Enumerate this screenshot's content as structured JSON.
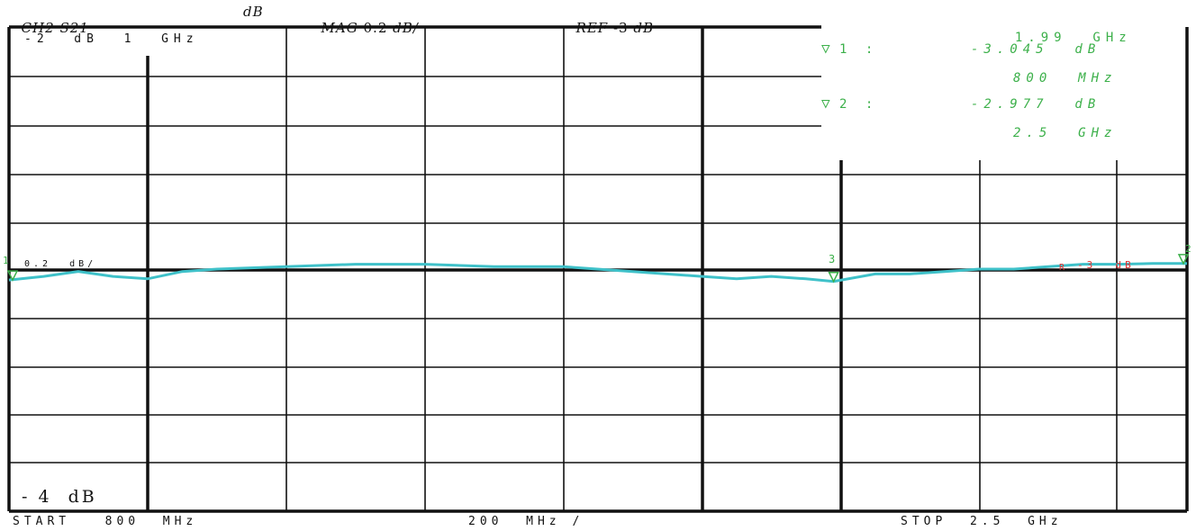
{
  "header": {
    "channel": "CH2",
    "parameter": "S21",
    "unit": "dB",
    "format": "MAG",
    "scale": "0.2",
    "scale_unit": "dB/",
    "ref_label": "REF",
    "ref_value": "-3",
    "ref_unit": "dB"
  },
  "markers": {
    "m3_freq": "1.99  GHz",
    "m1_label": "1 :",
    "m1_value": "-3.045  dB",
    "m1_freq": "800  MHz",
    "m2_label": "2 :",
    "m2_value": "-2.977  dB",
    "m2_freq": "2.5  GHz",
    "colors": {
      "trace": "#3fc1c9",
      "marker": "#3cb04a",
      "ref": "#e03030"
    }
  },
  "screen": {
    "top_left_text": "-2  dB  1  GHz",
    "scale_overlay": "0.2  dB/",
    "bottom_left_text": "- 4  dB",
    "ref_overlay": "-3  dB",
    "ref_marker_symbol": "R",
    "marker1_tag": "1",
    "marker2_tag": "2",
    "marker3_tag": "3"
  },
  "footer": {
    "start": "START   800  MHz",
    "span": "200  MHz /",
    "stop": "STOP  2.5  GHz"
  },
  "chart_data": {
    "type": "line",
    "title": "",
    "xlabel": "",
    "ylabel": "",
    "x_unit": "GHz",
    "y_unit": "dB",
    "xlim": [
      0.8,
      2.5
    ],
    "ylim": [
      -4,
      -2
    ],
    "reference_level": -3,
    "grid": true,
    "series": [
      {
        "x": [
          0.8,
          0.85,
          0.9,
          0.95,
          1.0,
          1.05,
          1.1,
          1.2,
          1.3,
          1.4,
          1.5,
          1.6,
          1.7,
          1.8,
          1.85,
          1.9,
          1.95,
          1.99,
          2.05,
          2.1,
          2.15,
          2.2,
          2.25,
          2.3,
          2.35,
          2.4,
          2.45,
          2.5
        ],
        "y": [
          -3.045,
          -3.03,
          -3.01,
          -3.03,
          -3.04,
          -3.01,
          -3.0,
          -2.99,
          -2.98,
          -2.98,
          -2.99,
          -2.99,
          -3.01,
          -3.03,
          -3.04,
          -3.03,
          -3.04,
          -3.051,
          -3.02,
          -3.02,
          -3.01,
          -3.0,
          -3.0,
          -2.99,
          -2.98,
          -2.98,
          -2.977,
          -2.977
        ]
      }
    ],
    "markers": [
      {
        "id": 1,
        "x": 0.8,
        "y": -3.045
      },
      {
        "id": 2,
        "x": 2.5,
        "y": -2.977
      },
      {
        "id": 3,
        "x": 1.99,
        "y": -3.051
      }
    ]
  }
}
